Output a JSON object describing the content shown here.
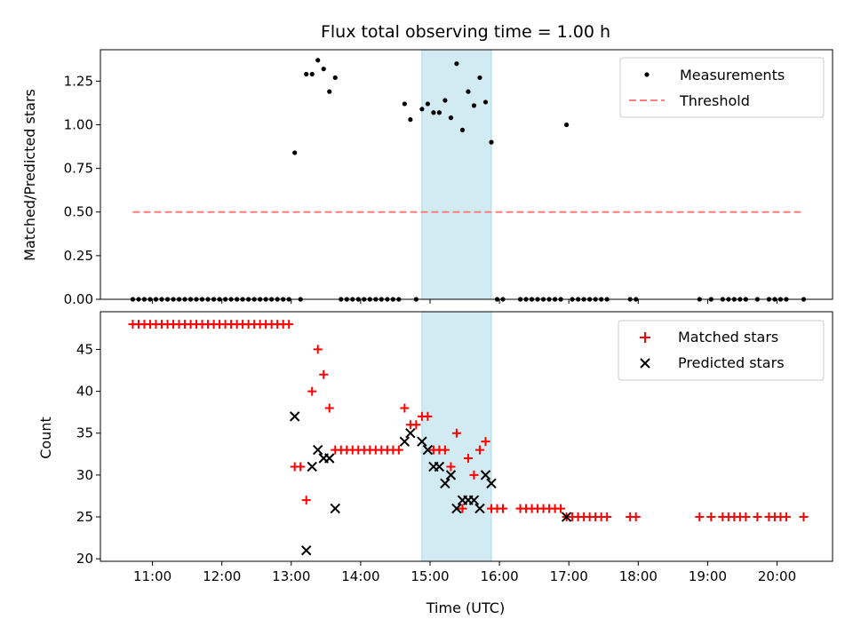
{
  "chart_data": [
    {
      "type": "scatter",
      "title": "Flux total observing time = 1.00 h",
      "xlabel": "",
      "ylabel": "Matched/Predicted stars",
      "ylim": [
        0,
        1.43
      ],
      "yticks": [
        "0.00",
        "0.25",
        "0.50",
        "0.75",
        "1.00",
        "1.25"
      ],
      "ytick_values": [
        0,
        0.25,
        0.5,
        0.75,
        1.0,
        1.25
      ],
      "highlight_span": {
        "start": "14:53",
        "end": "15:53",
        "color": "#add8e6"
      },
      "legend_position": "upper right",
      "series": [
        {
          "name": "Measurements",
          "marker": "dot",
          "color": "#000000",
          "points": [
            [
              "10:43",
              0
            ],
            [
              "10:48",
              0
            ],
            [
              "10:53",
              0
            ],
            [
              "10:58",
              0
            ],
            [
              "11:03",
              0
            ],
            [
              "11:08",
              0
            ],
            [
              "11:13",
              0
            ],
            [
              "11:18",
              0
            ],
            [
              "11:23",
              0
            ],
            [
              "11:28",
              0
            ],
            [
              "11:33",
              0
            ],
            [
              "11:38",
              0
            ],
            [
              "11:43",
              0
            ],
            [
              "11:48",
              0
            ],
            [
              "11:53",
              0
            ],
            [
              "11:58",
              0
            ],
            [
              "12:03",
              0
            ],
            [
              "12:08",
              0
            ],
            [
              "12:13",
              0
            ],
            [
              "12:18",
              0
            ],
            [
              "12:23",
              0
            ],
            [
              "12:28",
              0
            ],
            [
              "12:33",
              0
            ],
            [
              "12:38",
              0
            ],
            [
              "12:43",
              0
            ],
            [
              "12:48",
              0
            ],
            [
              "12:53",
              0
            ],
            [
              "12:58",
              0
            ],
            [
              "13:03",
              0.84
            ],
            [
              "13:08",
              0
            ],
            [
              "13:13",
              1.29
            ],
            [
              "13:18",
              1.29
            ],
            [
              "13:23",
              1.37
            ],
            [
              "13:28",
              1.32
            ],
            [
              "13:33",
              1.19
            ],
            [
              "13:38",
              1.27
            ],
            [
              "13:43",
              0
            ],
            [
              "13:48",
              0
            ],
            [
              "13:53",
              0
            ],
            [
              "13:58",
              0
            ],
            [
              "14:03",
              0
            ],
            [
              "14:08",
              0
            ],
            [
              "14:13",
              0
            ],
            [
              "14:18",
              0
            ],
            [
              "14:23",
              0
            ],
            [
              "14:28",
              0
            ],
            [
              "14:33",
              0
            ],
            [
              "14:38",
              1.12
            ],
            [
              "14:43",
              1.03
            ],
            [
              "14:48",
              0
            ],
            [
              "14:53",
              1.09
            ],
            [
              "14:58",
              1.12
            ],
            [
              "15:03",
              1.07
            ],
            [
              "15:08",
              1.07
            ],
            [
              "15:13",
              1.14
            ],
            [
              "15:18",
              1.04
            ],
            [
              "15:23",
              1.35
            ],
            [
              "15:28",
              0.97
            ],
            [
              "15:33",
              1.19
            ],
            [
              "15:38",
              1.11
            ],
            [
              "15:43",
              1.27
            ],
            [
              "15:48",
              1.13
            ],
            [
              "15:53",
              0.9
            ],
            [
              "15:58",
              0
            ],
            [
              "16:03",
              0
            ],
            [
              "16:18",
              0
            ],
            [
              "16:23",
              0
            ],
            [
              "16:28",
              0
            ],
            [
              "16:33",
              0
            ],
            [
              "16:38",
              0
            ],
            [
              "16:43",
              0
            ],
            [
              "16:48",
              0
            ],
            [
              "16:53",
              0
            ],
            [
              "16:58",
              1.0
            ],
            [
              "17:03",
              0
            ],
            [
              "17:08",
              0
            ],
            [
              "17:13",
              0
            ],
            [
              "17:18",
              0
            ],
            [
              "17:23",
              0
            ],
            [
              "17:28",
              0
            ],
            [
              "17:33",
              0
            ],
            [
              "17:53",
              0
            ],
            [
              "17:58",
              0
            ],
            [
              "18:53",
              0
            ],
            [
              "19:03",
              0
            ],
            [
              "19:13",
              0
            ],
            [
              "19:18",
              0
            ],
            [
              "19:23",
              0
            ],
            [
              "19:28",
              0
            ],
            [
              "19:33",
              0
            ],
            [
              "19:43",
              0
            ],
            [
              "19:53",
              0
            ],
            [
              "19:58",
              0
            ],
            [
              "20:03",
              0
            ],
            [
              "20:08",
              0
            ],
            [
              "20:23",
              0
            ]
          ]
        },
        {
          "name": "Threshold",
          "marker": "dashed-line",
          "color": "#ff7f7f",
          "value": 0.5,
          "x_range": [
            "10:43",
            "20:23"
          ]
        }
      ]
    },
    {
      "type": "scatter",
      "title": "",
      "xlabel": "Time (UTC)",
      "ylabel": "Count",
      "ylim": [
        19.7,
        49.5
      ],
      "yticks": [
        "20",
        "25",
        "30",
        "35",
        "40",
        "45"
      ],
      "ytick_values": [
        20,
        25,
        30,
        35,
        40,
        45
      ],
      "xticks": [
        "11:00",
        "12:00",
        "13:00",
        "14:00",
        "15:00",
        "16:00",
        "17:00",
        "18:00",
        "19:00",
        "20:00"
      ],
      "xlim": [
        "10:15",
        "20:48"
      ],
      "highlight_span": {
        "start": "14:53",
        "end": "15:53",
        "color": "#add8e6"
      },
      "legend_position": "upper right",
      "series": [
        {
          "name": "Matched stars",
          "marker": "plus",
          "color": "#ff0000",
          "points": [
            [
              "10:43",
              48
            ],
            [
              "10:48",
              48
            ],
            [
              "10:53",
              48
            ],
            [
              "10:58",
              48
            ],
            [
              "11:03",
              48
            ],
            [
              "11:08",
              48
            ],
            [
              "11:13",
              48
            ],
            [
              "11:18",
              48
            ],
            [
              "11:23",
              48
            ],
            [
              "11:28",
              48
            ],
            [
              "11:33",
              48
            ],
            [
              "11:38",
              48
            ],
            [
              "11:43",
              48
            ],
            [
              "11:48",
              48
            ],
            [
              "11:53",
              48
            ],
            [
              "11:58",
              48
            ],
            [
              "12:03",
              48
            ],
            [
              "12:08",
              48
            ],
            [
              "12:13",
              48
            ],
            [
              "12:18",
              48
            ],
            [
              "12:23",
              48
            ],
            [
              "12:28",
              48
            ],
            [
              "12:33",
              48
            ],
            [
              "12:38",
              48
            ],
            [
              "12:43",
              48
            ],
            [
              "12:48",
              48
            ],
            [
              "12:53",
              48
            ],
            [
              "12:58",
              48
            ],
            [
              "13:03",
              31
            ],
            [
              "13:08",
              31
            ],
            [
              "13:13",
              27
            ],
            [
              "13:18",
              40
            ],
            [
              "13:23",
              45
            ],
            [
              "13:28",
              42
            ],
            [
              "13:33",
              38
            ],
            [
              "13:38",
              33
            ],
            [
              "13:43",
              33
            ],
            [
              "13:48",
              33
            ],
            [
              "13:53",
              33
            ],
            [
              "13:58",
              33
            ],
            [
              "14:03",
              33
            ],
            [
              "14:08",
              33
            ],
            [
              "14:13",
              33
            ],
            [
              "14:18",
              33
            ],
            [
              "14:23",
              33
            ],
            [
              "14:28",
              33
            ],
            [
              "14:33",
              33
            ],
            [
              "14:38",
              38
            ],
            [
              "14:43",
              36
            ],
            [
              "14:48",
              36
            ],
            [
              "14:53",
              37
            ],
            [
              "14:58",
              37
            ],
            [
              "15:03",
              33
            ],
            [
              "15:08",
              33
            ],
            [
              "15:13",
              33
            ],
            [
              "15:18",
              31
            ],
            [
              "15:23",
              35
            ],
            [
              "15:28",
              26
            ],
            [
              "15:33",
              32
            ],
            [
              "15:38",
              30
            ],
            [
              "15:43",
              33
            ],
            [
              "15:48",
              34
            ],
            [
              "15:53",
              26
            ],
            [
              "15:58",
              26
            ],
            [
              "16:03",
              26
            ],
            [
              "16:18",
              26
            ],
            [
              "16:23",
              26
            ],
            [
              "16:28",
              26
            ],
            [
              "16:33",
              26
            ],
            [
              "16:38",
              26
            ],
            [
              "16:43",
              26
            ],
            [
              "16:48",
              26
            ],
            [
              "16:53",
              26
            ],
            [
              "16:58",
              25
            ],
            [
              "17:03",
              25
            ],
            [
              "17:08",
              25
            ],
            [
              "17:13",
              25
            ],
            [
              "17:18",
              25
            ],
            [
              "17:23",
              25
            ],
            [
              "17:28",
              25
            ],
            [
              "17:33",
              25
            ],
            [
              "17:53",
              25
            ],
            [
              "17:58",
              25
            ],
            [
              "18:53",
              25
            ],
            [
              "19:03",
              25
            ],
            [
              "19:13",
              25
            ],
            [
              "19:18",
              25
            ],
            [
              "19:23",
              25
            ],
            [
              "19:28",
              25
            ],
            [
              "19:33",
              25
            ],
            [
              "19:43",
              25
            ],
            [
              "19:53",
              25
            ],
            [
              "19:58",
              25
            ],
            [
              "20:03",
              25
            ],
            [
              "20:08",
              25
            ],
            [
              "20:23",
              25
            ]
          ]
        },
        {
          "name": "Predicted stars",
          "marker": "x",
          "color": "#000000",
          "points": [
            [
              "13:03",
              37
            ],
            [
              "13:13",
              21
            ],
            [
              "13:18",
              31
            ],
            [
              "13:23",
              33
            ],
            [
              "13:28",
              32
            ],
            [
              "13:33",
              32
            ],
            [
              "13:38",
              26
            ],
            [
              "14:38",
              34
            ],
            [
              "14:43",
              35
            ],
            [
              "14:53",
              34
            ],
            [
              "14:58",
              33
            ],
            [
              "15:03",
              31
            ],
            [
              "15:08",
              31
            ],
            [
              "15:13",
              29
            ],
            [
              "15:18",
              30
            ],
            [
              "15:23",
              26
            ],
            [
              "15:28",
              27
            ],
            [
              "15:33",
              27
            ],
            [
              "15:38",
              27
            ],
            [
              "15:43",
              26
            ],
            [
              "15:48",
              30
            ],
            [
              "15:53",
              29
            ],
            [
              "16:58",
              25
            ]
          ]
        }
      ]
    }
  ]
}
